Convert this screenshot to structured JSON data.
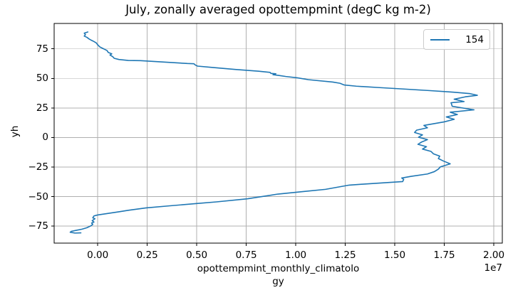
{
  "chart_data": {
    "type": "line",
    "title": "July, zonally averaged opottempmint (degC kg m-2)",
    "xlabel": "opottempmint_monthly_climatology",
    "xlabel_lines": [
      "opottempmint_monthly_climatolo",
      "gy"
    ],
    "ylabel": "yh",
    "x_offset_text": "1e7",
    "x_scale_factor": 10000000,
    "legend_position": "upper right",
    "grid": true,
    "xlim": [
      -0.22,
      2.043
    ],
    "ylim": [
      -89.4,
      96.5
    ],
    "xticks": {
      "values": [
        0.0,
        0.25,
        0.5,
        0.75,
        1.0,
        1.25,
        1.5,
        1.75,
        2.0
      ],
      "labels": [
        "0.00",
        "0.25",
        "0.50",
        "0.75",
        "1.00",
        "1.25",
        "1.50",
        "1.75",
        "2.00"
      ]
    },
    "yticks": {
      "values": [
        75,
        50,
        25,
        0,
        -25,
        -50,
        -75
      ],
      "labels": [
        "75",
        "50",
        "25",
        "0",
        "−25",
        "−50",
        "−75"
      ]
    },
    "colors": {
      "line": "#1f77b4",
      "grid": "#b0b0b0",
      "spine": "#000000",
      "legend_edge": "#cccccc"
    },
    "series": [
      {
        "name": "154",
        "color": "#1f77b4",
        "points_format": "[opottempmint_value_in_1e7, yh_latitude]",
        "points": [
          [
            -0.05,
            89.3
          ],
          [
            -0.068,
            88.3
          ],
          [
            -0.062,
            87.0
          ],
          [
            -0.068,
            85.8
          ],
          [
            -0.055,
            84.8
          ],
          [
            -0.043,
            83.3
          ],
          [
            -0.031,
            82.2
          ],
          [
            -0.019,
            81.2
          ],
          [
            -0.007,
            80.0
          ],
          [
            -0.001,
            78.6
          ],
          [
            0.005,
            77.6
          ],
          [
            0.011,
            76.6
          ],
          [
            0.023,
            75.6
          ],
          [
            0.035,
            74.6
          ],
          [
            0.047,
            73.6
          ],
          [
            0.053,
            72.0
          ],
          [
            0.071,
            70.8
          ],
          [
            0.062,
            69.8
          ],
          [
            0.07,
            69.0
          ],
          [
            0.077,
            68.2
          ],
          [
            0.083,
            67.0
          ],
          [
            0.107,
            66.0
          ],
          [
            0.155,
            65.2
          ],
          [
            0.216,
            65.0
          ],
          [
            0.335,
            63.8
          ],
          [
            0.453,
            62.6
          ],
          [
            0.486,
            62.4
          ],
          [
            0.492,
            61.4
          ],
          [
            0.504,
            60.4
          ],
          [
            0.576,
            59.3
          ],
          [
            0.694,
            57.6
          ],
          [
            0.813,
            56.1
          ],
          [
            0.87,
            55.1
          ],
          [
            0.875,
            54.2
          ],
          [
            0.9,
            53.9
          ],
          [
            0.885,
            53.1
          ],
          [
            0.91,
            52.6
          ],
          [
            0.95,
            51.6
          ],
          [
            1.007,
            50.5
          ],
          [
            1.065,
            48.9
          ],
          [
            1.187,
            46.9
          ],
          [
            1.223,
            45.9
          ],
          [
            1.245,
            44.4
          ],
          [
            1.306,
            43.4
          ],
          [
            1.424,
            42.2
          ],
          [
            1.546,
            41.0
          ],
          [
            1.665,
            39.8
          ],
          [
            1.784,
            38.5
          ],
          [
            1.88,
            37.1
          ],
          [
            1.917,
            35.7
          ],
          [
            1.856,
            34.4
          ],
          [
            1.8,
            32.4
          ],
          [
            1.85,
            30.4
          ],
          [
            1.784,
            29.4
          ],
          [
            1.79,
            26.4
          ],
          [
            1.856,
            24.6
          ],
          [
            1.9,
            23.4
          ],
          [
            1.78,
            21.4
          ],
          [
            1.816,
            19.4
          ],
          [
            1.76,
            17.4
          ],
          [
            1.8,
            15.4
          ],
          [
            1.75,
            13.2
          ],
          [
            1.647,
            10.2
          ],
          [
            1.665,
            8.2
          ],
          [
            1.61,
            6.2
          ],
          [
            1.6,
            4.2
          ],
          [
            1.64,
            2.2
          ],
          [
            1.62,
            0.2
          ],
          [
            1.665,
            -1.8
          ],
          [
            1.636,
            -3.8
          ],
          [
            1.617,
            -5.8
          ],
          [
            1.66,
            -7.8
          ],
          [
            1.64,
            -9.8
          ],
          [
            1.683,
            -11.8
          ],
          [
            1.695,
            -13.8
          ],
          [
            1.727,
            -15.8
          ],
          [
            1.72,
            -17.8
          ],
          [
            1.744,
            -19.8
          ],
          [
            1.78,
            -22.3
          ],
          [
            1.73,
            -24.9
          ],
          [
            1.72,
            -26.8
          ],
          [
            1.7,
            -28.9
          ],
          [
            1.665,
            -30.9
          ],
          [
            1.583,
            -32.9
          ],
          [
            1.535,
            -34.3
          ],
          [
            1.545,
            -35.5
          ],
          [
            1.54,
            -37.3
          ],
          [
            1.45,
            -38.3
          ],
          [
            1.34,
            -39.5
          ],
          [
            1.27,
            -40.3
          ],
          [
            1.15,
            -43.9
          ],
          [
            1.03,
            -45.9
          ],
          [
            0.91,
            -47.9
          ],
          [
            0.755,
            -51.9
          ],
          [
            0.6,
            -54.5
          ],
          [
            0.5,
            -55.9
          ],
          [
            0.36,
            -57.9
          ],
          [
            0.245,
            -59.6
          ],
          [
            0.155,
            -61.6
          ],
          [
            0.107,
            -62.9
          ],
          [
            0.047,
            -64.4
          ],
          [
            -0.001,
            -65.6
          ],
          [
            -0.019,
            -66.4
          ],
          [
            -0.025,
            -68.0
          ],
          [
            -0.014,
            -68.8
          ],
          [
            -0.028,
            -70.4
          ],
          [
            -0.019,
            -71.6
          ],
          [
            -0.031,
            -72.4
          ],
          [
            -0.025,
            -73.6
          ],
          [
            -0.037,
            -75.0
          ],
          [
            -0.055,
            -76.4
          ],
          [
            -0.079,
            -77.6
          ],
          [
            -0.109,
            -78.6
          ],
          [
            -0.133,
            -79.4
          ],
          [
            -0.139,
            -80.2
          ],
          [
            -0.115,
            -80.9
          ],
          [
            -0.085,
            -80.7
          ]
        ]
      }
    ],
    "legend": [
      "154"
    ]
  }
}
